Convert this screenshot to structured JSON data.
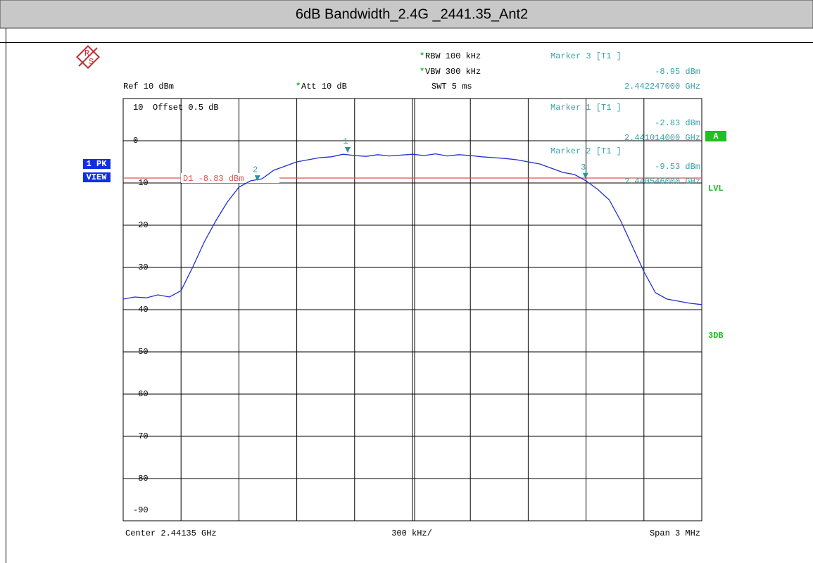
{
  "chart_data": {
    "type": "line",
    "title": "6dB Bandwidth_2.4G _2441.35_Ant2",
    "logo": [
      "R",
      "S"
    ],
    "ref": "Ref 10 dBm",
    "settings": [
      {
        "star": "*",
        "text": "RBW 100 kHz"
      },
      {
        "star": "*",
        "text": "VBW 300 kHz"
      },
      {
        "star": "*",
        "text": "Att 10 dB"
      }
    ],
    "swt": "SWT 5 ms",
    "offset": "Offset 0.5 dB",
    "left_labels": [
      "1 PK",
      "VIEW"
    ],
    "right_labels": [
      "A",
      "LVL",
      "3DB"
    ],
    "footer": [
      "Center 2.44135 GHz",
      "300 kHz/",
      "Span 3 MHz"
    ],
    "xlim": [
      2.43985,
      2.44285
    ],
    "ylim": [
      -90,
      10
    ],
    "xticks": [
      2.43985,
      2.44015,
      2.44045,
      2.44075,
      2.44105,
      2.44135,
      2.44165,
      2.44195,
      2.44225,
      2.44255,
      2.44285
    ],
    "yticks": [
      10,
      0,
      -10,
      -20,
      -30,
      -40,
      -50,
      -60,
      -70,
      -80,
      -90
    ],
    "grid": true,
    "series": [
      {
        "color": "#1f2fd0",
        "x": [
          2.43985,
          2.43991,
          2.43997,
          2.44003,
          2.44009,
          2.44015,
          2.44021,
          2.44027,
          2.44033,
          2.44039,
          2.44045,
          2.44051,
          2.44057,
          2.44063,
          2.44069,
          2.44075,
          2.44081,
          2.44087,
          2.44093,
          2.44099,
          2.44105,
          2.44111,
          2.44117,
          2.44123,
          2.44129,
          2.44135,
          2.44141,
          2.44147,
          2.44153,
          2.44159,
          2.44165,
          2.44171,
          2.44177,
          2.44183,
          2.44189,
          2.44195,
          2.44201,
          2.44207,
          2.44213,
          2.44219,
          2.44225,
          2.44231,
          2.44237,
          2.44243,
          2.44249,
          2.44255,
          2.44261,
          2.44267,
          2.44273,
          2.44279,
          2.44285
        ],
        "values": [
          -37.5,
          -37,
          -37.2,
          -36.5,
          -37,
          -35.5,
          -30,
          -24,
          -19,
          -14.5,
          -11,
          -9.5,
          -9,
          -7,
          -6,
          -5,
          -4.5,
          -4,
          -3.8,
          -3.2,
          -3.5,
          -3.7,
          -3.3,
          -3.6,
          -3.4,
          -3.2,
          -3.5,
          -3.1,
          -3.6,
          -3.3,
          -3.5,
          -3.8,
          -4,
          -4.2,
          -4.5,
          -5,
          -5.5,
          -6.5,
          -7.5,
          -8,
          -9.5,
          -11.5,
          -14,
          -19,
          -25,
          -31,
          -36,
          -37.5,
          -38,
          -38.5,
          -38.8
        ]
      }
    ],
    "display_line": {
      "value": -8.83,
      "label": "D1 -8.83 dBm",
      "color": "#e05050"
    },
    "markers": [
      {
        "label": "1",
        "x": 2.441014,
        "value": -2.83,
        "title": "Marker 1 [T1 ]",
        "value_label": "-2.83 dBm",
        "x_label": "2.441014000 GHz"
      },
      {
        "label": "2",
        "x": 2.440546,
        "value": -9.53,
        "title": "Marker 2 [T1 ]",
        "value_label": "-9.53 dBm",
        "x_label": "2.440546000 GHz"
      },
      {
        "label": "3",
        "x": 2.442247,
        "value": -8.95,
        "title": "Marker 3 [T1 ]",
        "value_label": "-8.95 dBm",
        "x_label": "2.442247000 GHz"
      }
    ]
  }
}
